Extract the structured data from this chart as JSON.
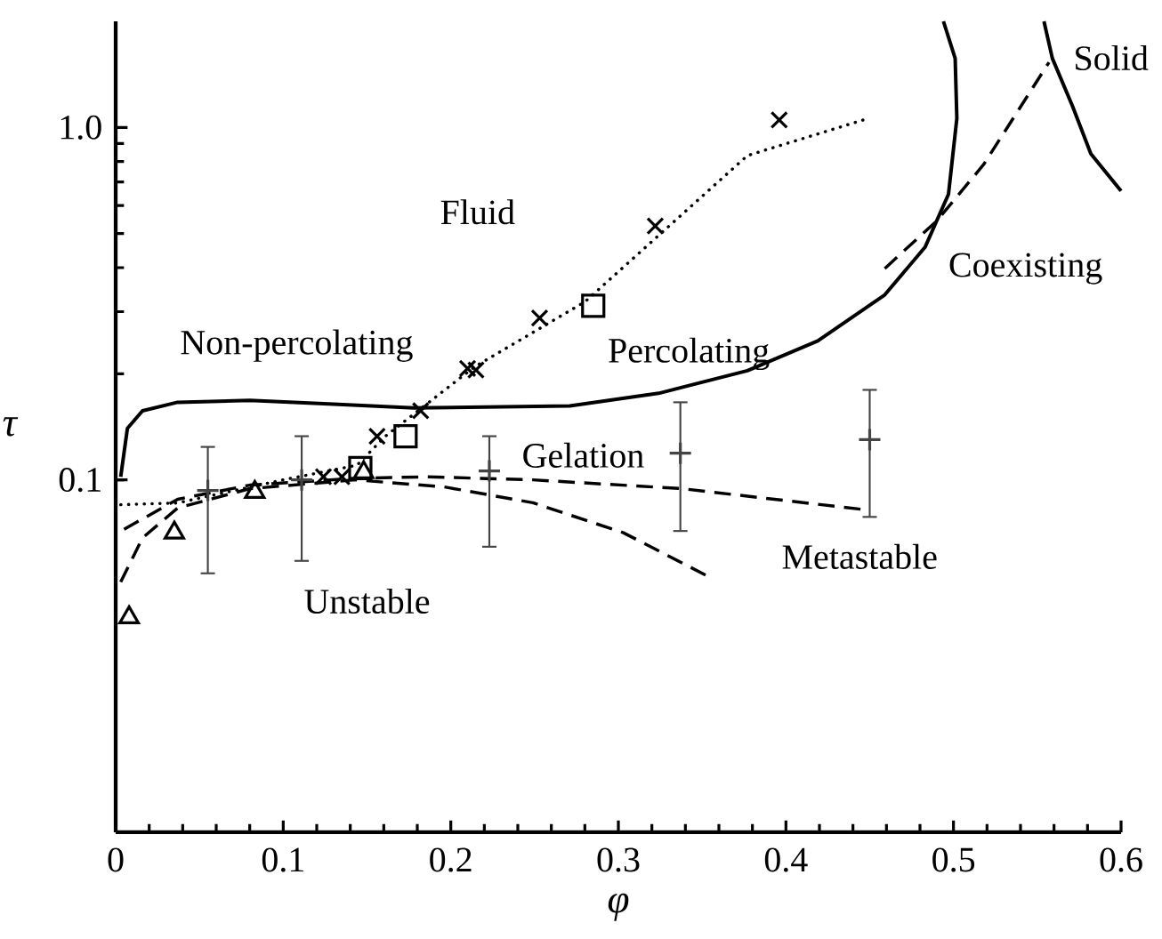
{
  "chart_data": {
    "type": "line",
    "xlabel": "φ",
    "ylabel": "τ",
    "log": "y",
    "grid": false,
    "xlim": [
      0,
      0.6
    ],
    "ylim": [
      0.01,
      2
    ],
    "xticks": [
      0,
      0.1,
      0.2,
      0.3,
      0.4,
      0.5,
      0.6
    ],
    "yticks": [
      0.1,
      {
        "value": 1,
        "label": "1.0"
      }
    ],
    "series": [
      {
        "color": "#000000",
        "line_style": "solid",
        "marker": "none",
        "x": [
          0.003,
          0.007,
          0.016,
          0.037,
          0.08,
          0.13,
          0.178,
          0.271,
          0.324,
          0.377,
          0.419,
          0.459,
          0.483,
          0.497,
          0.502,
          0.501,
          0.494
        ],
        "values": [
          0.102,
          0.14,
          0.157,
          0.166,
          0.168,
          0.164,
          0.16,
          0.162,
          0.176,
          0.204,
          0.248,
          0.335,
          0.457,
          0.646,
          1.06,
          1.57,
          2.0
        ]
      },
      {
        "color": "#000000",
        "line_style": "solid",
        "marker": "none",
        "x": [
          0.554,
          0.559,
          0.571,
          0.582,
          0.6
        ],
        "values": [
          2.0,
          1.57,
          1.15,
          0.841,
          0.66
        ]
      },
      {
        "color": "#000000",
        "line_style": "dashed",
        "marker": "none",
        "x": [
          0.459,
          0.49,
          0.518,
          0.557
        ],
        "values": [
          0.398,
          0.543,
          0.785,
          1.53
        ]
      },
      {
        "color": "#000000",
        "line_style": "dotted",
        "marker": "none",
        "x": [
          0.003,
          0.037,
          0.1,
          0.144,
          0.161,
          0.214,
          0.28,
          0.377,
          0.449
        ],
        "values": [
          0.085,
          0.086,
          0.1,
          0.11,
          0.133,
          0.209,
          0.32,
          0.832,
          1.06
        ]
      },
      {
        "color": "#000000",
        "line_style": "dashed",
        "marker": "none",
        "x": [
          0.005,
          0.037,
          0.08,
          0.143,
          0.186,
          0.249,
          0.338,
          0.448
        ],
        "values": [
          0.0724,
          0.0881,
          0.0966,
          0.101,
          0.102,
          0.1,
          0.0944,
          0.0822
        ]
      },
      {
        "color": "#000000",
        "line_style": "dashed",
        "marker": "none",
        "x": [
          0.003,
          0.016,
          0.037,
          0.08,
          0.143,
          0.196,
          0.249,
          0.303,
          0.356
        ],
        "values": [
          0.0513,
          0.0684,
          0.0832,
          0.0944,
          0.1,
          0.0955,
          0.0861,
          0.0708,
          0.0525
        ]
      },
      {
        "type": "scatter",
        "color": "#000000",
        "marker": "triangle",
        "x": [
          0.008,
          0.035,
          0.083,
          0.148
        ],
        "values": [
          0.0407,
          0.0708,
          0.0923,
          0.105
        ]
      },
      {
        "type": "scatter",
        "color": "#000000",
        "marker": "cross",
        "x": [
          0.124,
          0.135,
          0.156,
          0.182,
          0.21,
          0.215,
          0.253,
          0.322,
          0.396
        ],
        "values": [
          0.102,
          0.102,
          0.133,
          0.157,
          0.207,
          0.205,
          0.288,
          0.525,
          1.05
        ]
      },
      {
        "type": "scatter",
        "color": "#444444",
        "marker": "plus",
        "x": [
          0.055,
          0.111,
          0.223,
          0.337,
          0.45
        ],
        "values": [
          0.0933,
          0.1,
          0.106,
          0.119,
          0.13
        ],
        "errors": [
          [
            0.0543,
            0.124
          ],
          [
            0.0589,
            0.133
          ],
          [
            0.0646,
            0.133
          ],
          [
            0.0716,
            0.166
          ],
          [
            0.0785,
            0.18
          ]
        ]
      },
      {
        "type": "scatter",
        "color": "#000000",
        "marker": "square",
        "x": [
          0.146,
          0.173,
          0.285
        ],
        "values": [
          0.108,
          0.133,
          0.312
        ]
      }
    ],
    "annotations": [
      "Fluid",
      "Non-percolating",
      "Percolating",
      "Coexisting",
      "Solid",
      "Gelation",
      "Metastable",
      "Unstable"
    ]
  }
}
